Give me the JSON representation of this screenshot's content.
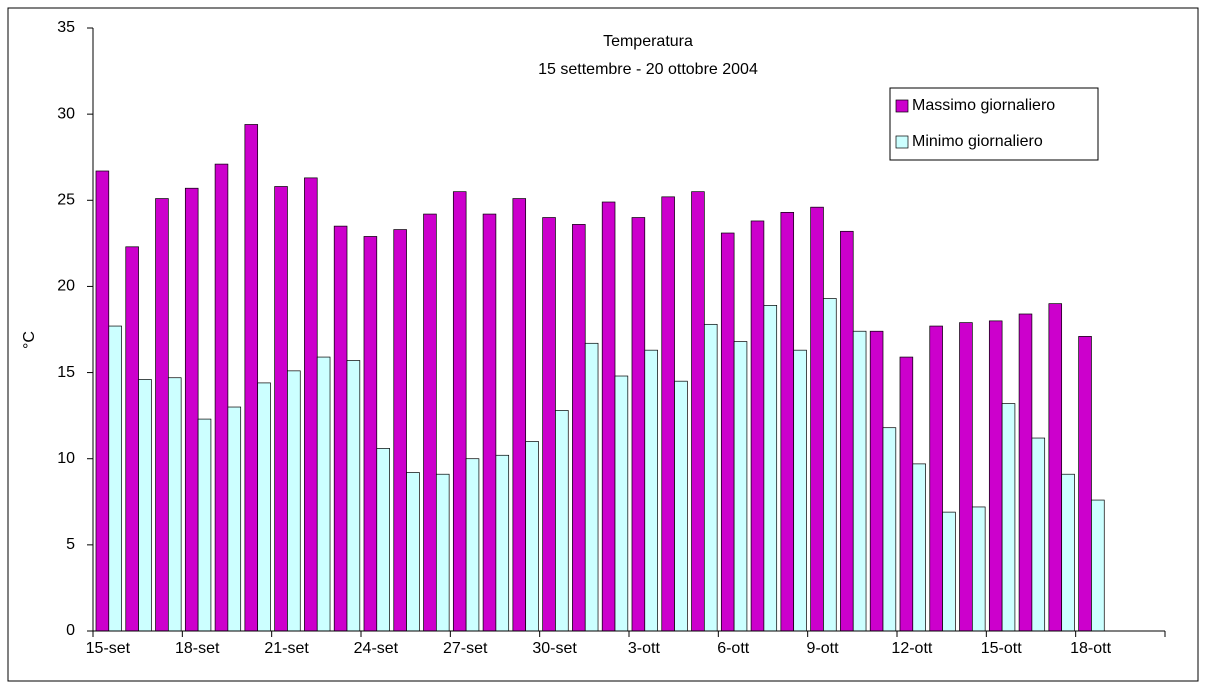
{
  "chart_data": {
    "type": "bar",
    "title": "Temperatura",
    "subtitle": "15 settembre - 20 ottobre 2004",
    "y_label": "°C",
    "categories": [
      "15-set",
      null,
      null,
      "18-set",
      null,
      null,
      "21-set",
      null,
      null,
      "24-set",
      null,
      null,
      "27-set",
      null,
      null,
      "30-set",
      null,
      null,
      "3-ott",
      null,
      null,
      "6-ott",
      null,
      null,
      "9-ott",
      null,
      null,
      "12-ott",
      null,
      null,
      "15-ott",
      null,
      null,
      "18-ott",
      null,
      null
    ],
    "series": [
      {
        "name": "Massimo giornaliero",
        "color": "#cc00cc",
        "values": [
          26.7,
          22.3,
          25.1,
          25.7,
          27.1,
          29.4,
          25.8,
          26.3,
          23.5,
          22.9,
          23.3,
          24.2,
          25.5,
          24.2,
          25.1,
          24.0,
          23.6,
          24.9,
          24.0,
          25.2,
          25.5,
          23.1,
          23.8,
          24.3,
          24.6,
          23.2,
          17.4,
          15.9,
          17.7,
          17.9,
          18.0,
          18.4,
          19.0,
          17.1,
          null,
          null
        ]
      },
      {
        "name": "Minimo giornaliero",
        "color": "#ccffff",
        "values": [
          17.7,
          14.6,
          14.7,
          12.3,
          13.0,
          14.4,
          15.1,
          15.9,
          15.7,
          10.6,
          9.2,
          9.1,
          10.0,
          10.2,
          11.0,
          12.8,
          16.7,
          14.8,
          16.3,
          14.5,
          17.8,
          16.8,
          18.9,
          16.3,
          19.3,
          17.4,
          11.8,
          9.7,
          6.9,
          7.2,
          13.2,
          11.2,
          9.1,
          7.6,
          null,
          null
        ]
      }
    ],
    "ylim": [
      0,
      35
    ],
    "yticks": [
      0,
      5,
      10,
      15,
      20,
      25,
      30,
      35
    ],
    "grid": false,
    "legend": "upper right"
  }
}
